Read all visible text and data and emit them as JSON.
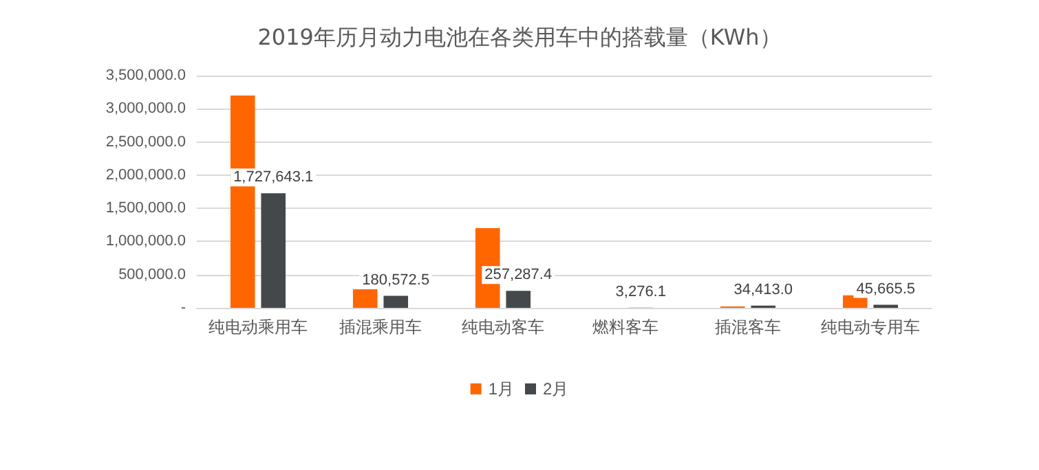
{
  "chart_data": {
    "type": "bar",
    "title": "2019年历月动力电池在各类用车中的搭载量（KWh）",
    "categories": [
      "纯电动乘用车",
      "插混乘用车",
      "纯电动客车",
      "燃料客车",
      "插混客车",
      "纯电动专用车"
    ],
    "series": [
      {
        "name": "1月",
        "color": "#ff6600",
        "values": [
          3200000,
          280000,
          1200000,
          null,
          20000,
          190000
        ]
      },
      {
        "name": "2月",
        "color": "#44484b",
        "values": [
          1727643.1,
          180572.5,
          257287.4,
          3276.1,
          34413.0,
          45665.5
        ],
        "value_labels": [
          "1,727,643.1",
          "180,572.5",
          "257,287.4",
          "3,276.1",
          "34,413.0",
          "45,665.5"
        ]
      }
    ],
    "ylim": [
      0,
      3500000
    ],
    "yticks": [
      {
        "value": 0,
        "label": "-"
      },
      {
        "value": 500000,
        "label": "500,000.0"
      },
      {
        "value": 1000000,
        "label": "1,000,000.0"
      },
      {
        "value": 1500000,
        "label": "1,500,000.0"
      },
      {
        "value": 2000000,
        "label": "2,000,000.0"
      },
      {
        "value": 2500000,
        "label": "2,500,000.0"
      },
      {
        "value": 3000000,
        "label": "3,000,000.0"
      },
      {
        "value": 3500000,
        "label": "3,500,000.0"
      }
    ],
    "grid": "y",
    "legend": "bottom"
  }
}
